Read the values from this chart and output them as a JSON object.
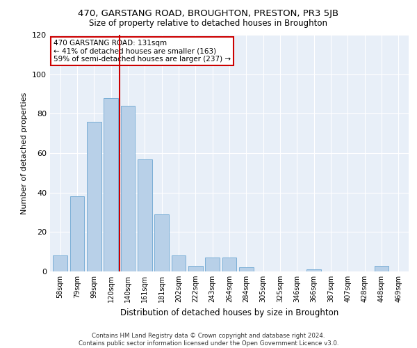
{
  "title": "470, GARSTANG ROAD, BROUGHTON, PRESTON, PR3 5JB",
  "subtitle": "Size of property relative to detached houses in Broughton",
  "xlabel": "Distribution of detached houses by size in Broughton",
  "ylabel": "Number of detached properties",
  "categories": [
    "58sqm",
    "79sqm",
    "99sqm",
    "120sqm",
    "140sqm",
    "161sqm",
    "181sqm",
    "202sqm",
    "222sqm",
    "243sqm",
    "264sqm",
    "284sqm",
    "305sqm",
    "325sqm",
    "346sqm",
    "366sqm",
    "387sqm",
    "407sqm",
    "428sqm",
    "448sqm",
    "469sqm"
  ],
  "values": [
    8,
    38,
    76,
    88,
    84,
    57,
    29,
    8,
    3,
    7,
    7,
    2,
    0,
    0,
    0,
    1,
    0,
    0,
    0,
    3,
    0
  ],
  "bar_color": "#b8d0e8",
  "bar_edgecolor": "#7aaed6",
  "background_color": "#e8eff8",
  "vline_color": "#cc0000",
  "annotation_text": "470 GARSTANG ROAD: 131sqm\n← 41% of detached houses are smaller (163)\n59% of semi-detached houses are larger (237) →",
  "annotation_box_color": "white",
  "annotation_box_edgecolor": "#cc0000",
  "ylim": [
    0,
    120
  ],
  "yticks": [
    0,
    20,
    40,
    60,
    80,
    100,
    120
  ],
  "footer1": "Contains HM Land Registry data © Crown copyright and database right 2024.",
  "footer2": "Contains public sector information licensed under the Open Government Licence v3.0."
}
